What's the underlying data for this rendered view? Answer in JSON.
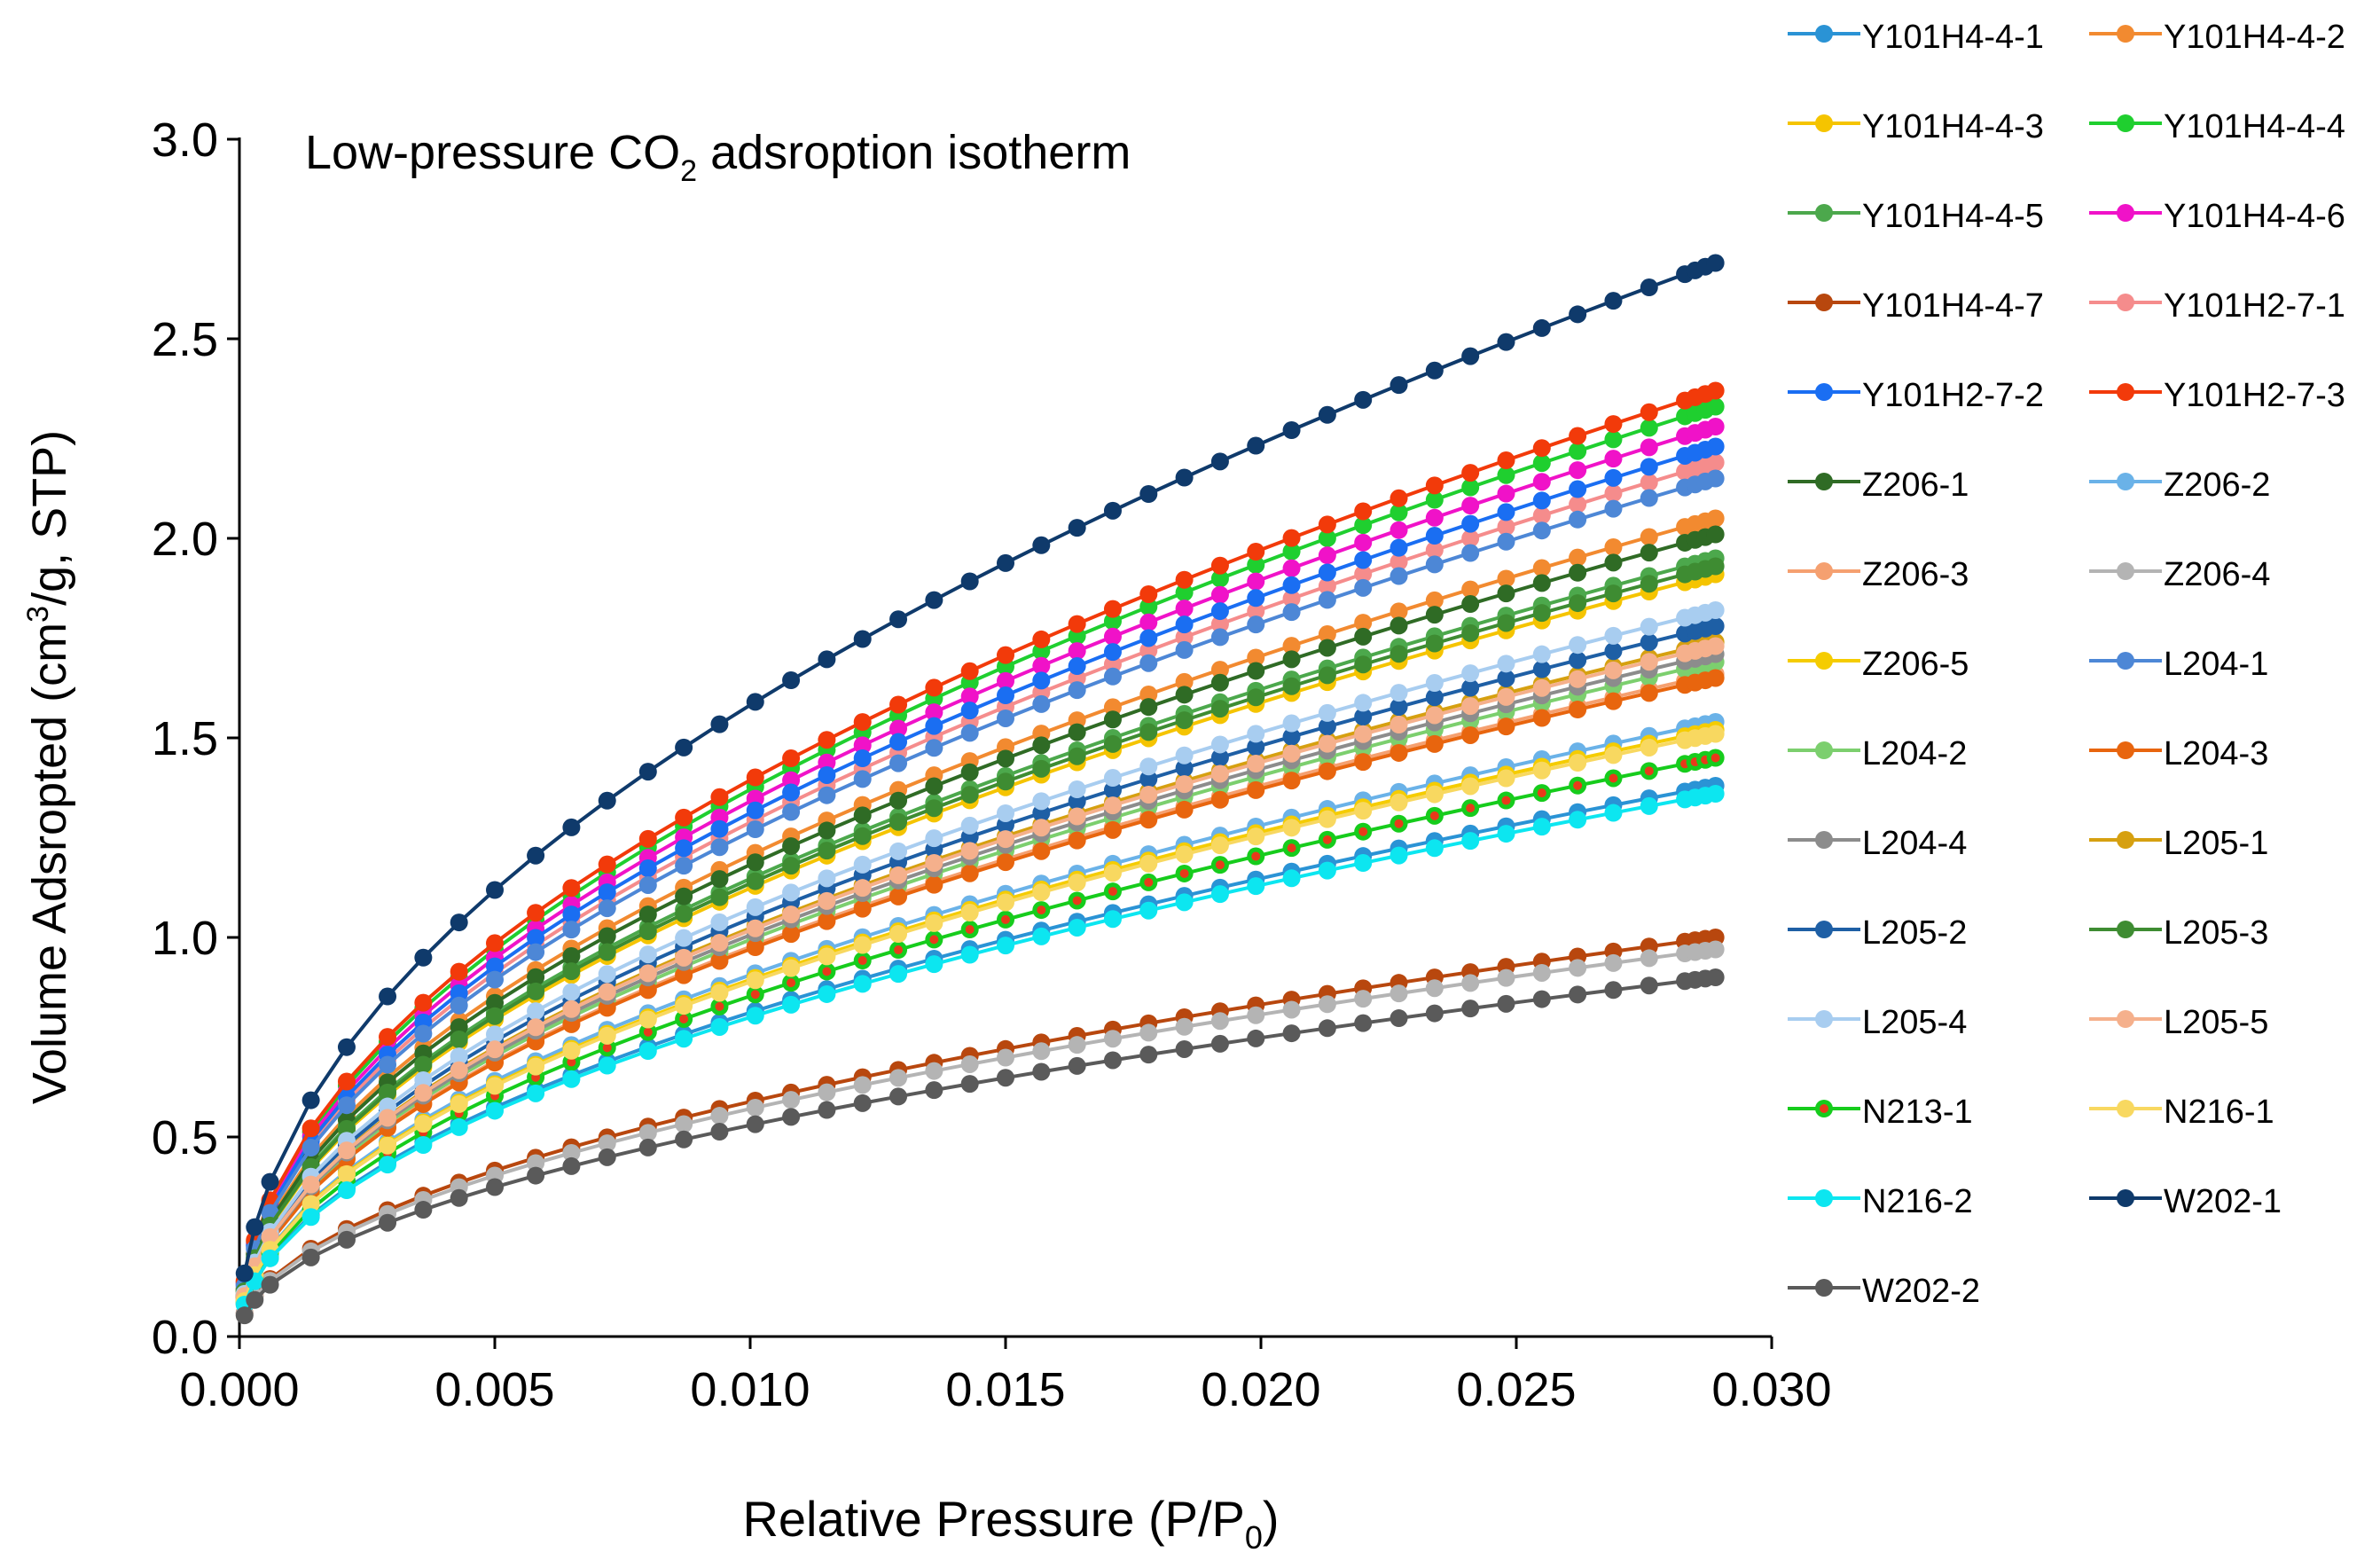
{
  "chart_data": {
    "type": "line",
    "title_main": "Low-pressure CO",
    "title_sub": "2",
    "title_rest": " adsroption isotherm",
    "ylabel_pre": "Volume Adsropted (cm",
    "ylabel_sup": "3",
    "ylabel_post": "/g, STP)",
    "xlabel_pre": "Relative Pressure (P/P",
    "xlabel_sub": "0",
    "xlabel_post": ")",
    "xlim": [
      0,
      0.03
    ],
    "ylim": [
      0,
      3.0
    ],
    "x_ticks": [
      "0.000",
      "0.005",
      "0.010",
      "0.015",
      "0.020",
      "0.025",
      "0.030"
    ],
    "y_ticks": [
      "0.0",
      "0.5",
      "1.0",
      "1.5",
      "2.0",
      "2.5",
      "3.0"
    ],
    "grid": false,
    "legend_position": "right",
    "marker": "filled-circle",
    "x_points": [
      0.0001,
      0.0003,
      0.0006,
      0.0014,
      0.0021,
      0.0029,
      0.0036,
      0.0043,
      0.005,
      0.0058,
      0.0065,
      0.0072,
      0.008,
      0.0087,
      0.0094,
      0.0101,
      0.0108,
      0.0115,
      0.0122,
      0.0129,
      0.0136,
      0.0143,
      0.015,
      0.0157,
      0.0164,
      0.0171,
      0.0178,
      0.0185,
      0.0192,
      0.0199,
      0.0206,
      0.0213,
      0.022,
      0.0227,
      0.0234,
      0.0241,
      0.0248,
      0.0255,
      0.0262,
      0.0269,
      0.0276,
      0.0283,
      0.0285,
      0.0287,
      0.0289
    ],
    "series": [
      {
        "name": "Y101H4-4-1",
        "color": "#2a93d5",
        "final": 1.38
      },
      {
        "name": "Y101H4-4-2",
        "color": "#f28a30",
        "final": 2.05
      },
      {
        "name": "Y101H4-4-3",
        "color": "#f5c400",
        "final": 1.91
      },
      {
        "name": "Y101H4-4-4",
        "color": "#1fcf2f",
        "final": 2.33
      },
      {
        "name": "Y101H4-4-5",
        "color": "#4ca84c",
        "final": 1.95
      },
      {
        "name": "Y101H4-4-6",
        "color": "#f012c8",
        "final": 2.28
      },
      {
        "name": "Y101H4-4-7",
        "color": "#b8470e",
        "final": 1.0
      },
      {
        "name": "Y101H2-7-1",
        "color": "#f58c8c",
        "final": 2.19
      },
      {
        "name": "Y101H2-7-2",
        "color": "#1a6ef2",
        "final": 2.23
      },
      {
        "name": "Y101H2-7-3",
        "color": "#f23a0a",
        "final": 2.37
      },
      {
        "name": "Z206-1",
        "color": "#2f6b25",
        "final": 2.01
      },
      {
        "name": "Z206-2",
        "color": "#6ab2e8",
        "final": 1.54
      },
      {
        "name": "Z206-3",
        "color": "#f5a070",
        "final": 1.66
      },
      {
        "name": "Z206-4",
        "color": "#b4b4b4",
        "final": 0.97
      },
      {
        "name": "Z206-5",
        "color": "#f5cc00",
        "final": 1.52
      },
      {
        "name": "L204-1",
        "color": "#4d87d6",
        "final": 2.15
      },
      {
        "name": "L204-2",
        "color": "#7ccf6e",
        "final": 1.69
      },
      {
        "name": "L204-3",
        "color": "#e8650e",
        "final": 1.65
      },
      {
        "name": "L204-4",
        "color": "#8c8c8c",
        "final": 1.71
      },
      {
        "name": "L205-1",
        "color": "#d6a010",
        "final": 1.74
      },
      {
        "name": "L205-2",
        "color": "#1e5fa5",
        "final": 1.78
      },
      {
        "name": "L205-3",
        "color": "#3e8c32",
        "final": 1.93
      },
      {
        "name": "L205-4",
        "color": "#a8cdf0",
        "final": 1.82
      },
      {
        "name": "L205-5",
        "color": "#f5b08c",
        "final": 1.73
      },
      {
        "name": "N213-1",
        "color": "#16cc1c",
        "final": 1.45,
        "marker_center": "#e83a1a"
      },
      {
        "name": "N216-1",
        "color": "#f8d860",
        "final": 1.51
      },
      {
        "name": "N216-2",
        "color": "#0ce6f0",
        "final": 1.36
      },
      {
        "name": "W202-1",
        "color": "#0f3a6b",
        "final": 2.69
      },
      {
        "name": "W202-2",
        "color": "#5a5a5a",
        "final": 0.9
      }
    ]
  }
}
